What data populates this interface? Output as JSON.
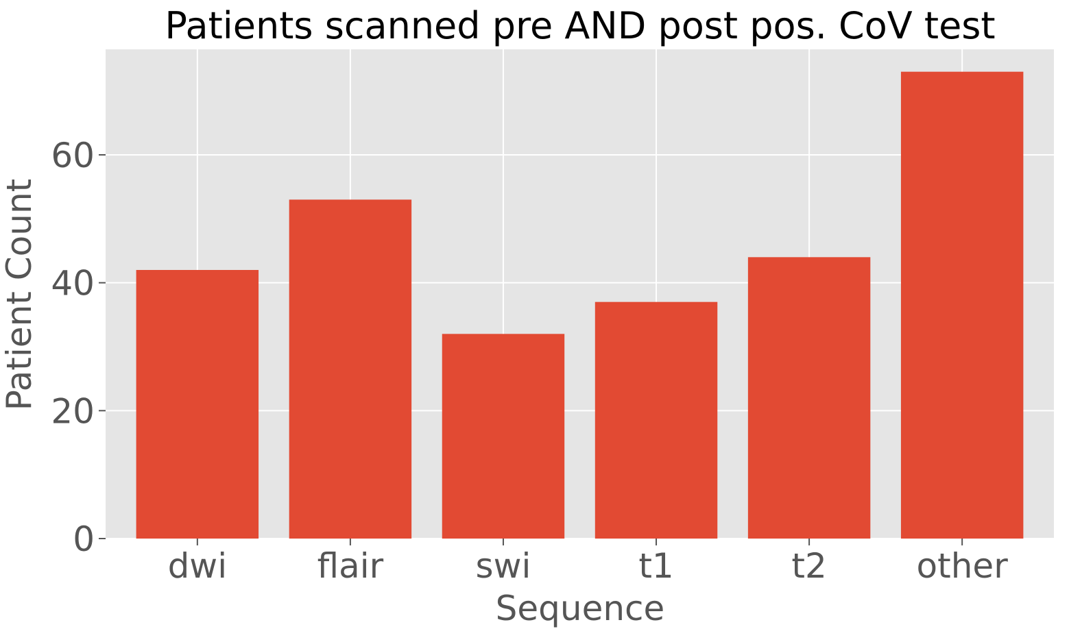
{
  "chart_data": {
    "type": "bar",
    "title": "Patients scanned pre AND post pos. CoV test",
    "xlabel": "Sequence",
    "ylabel": "Patient Count",
    "categories": [
      "dwi",
      "flair",
      "swi",
      "t1",
      "t2",
      "other"
    ],
    "values": [
      42,
      53,
      32,
      37,
      44,
      73
    ],
    "ylim": [
      0,
      76.5
    ],
    "yticks": [
      0,
      20,
      40,
      60
    ],
    "grid": true,
    "legend": "none",
    "colors": {
      "bar": "#E24A33",
      "plot_background": "#E5E5E5",
      "grid": "#FFFFFF",
      "tick_text": "#555555",
      "title_text": "#000000"
    }
  }
}
